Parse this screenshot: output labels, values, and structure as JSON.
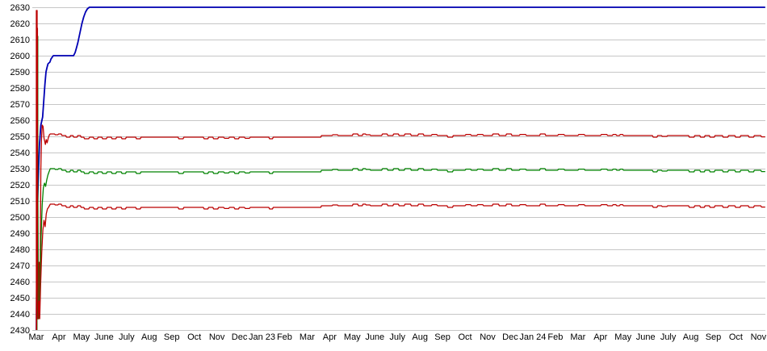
{
  "chart_data": {
    "type": "line",
    "title": "",
    "xlabel": "",
    "ylabel": "",
    "legend": "none",
    "grid": "horizontal",
    "grid_color": "#c6c6c6",
    "axis_line_color": "#c6c6c6",
    "text_color": "#000000",
    "ylim": [
      2430,
      2630
    ],
    "y_step": 10,
    "y_tick_labels": [
      "2630",
      "2620",
      "2610",
      "2600",
      "2590",
      "2580",
      "2570",
      "2560",
      "2550",
      "2540",
      "2530",
      "2520",
      "2510",
      "2500",
      "2490",
      "2480",
      "2470",
      "2460",
      "2450",
      "2440",
      "2430"
    ],
    "x_tick_labels": [
      "Mar",
      "Apr",
      "May",
      "June",
      "July",
      "Aug",
      "Sep",
      "Oct",
      "Nov",
      "Dec",
      "Jan 23",
      "Feb",
      "Mar",
      "Apr",
      "May",
      "June",
      "July",
      "Aug",
      "Sep",
      "Oct",
      "Nov",
      "Dec",
      "Jan 24",
      "Feb",
      "Mar",
      "Apr",
      "May",
      "June",
      "July",
      "Aug",
      "Sep",
      "Oct",
      "Nov"
    ],
    "x_range_months": [
      0,
      32.3
    ],
    "series": [
      {
        "name": "blue-peak-line",
        "color": "#0000b4",
        "width": 1.8,
        "points": [
          [
            0.0,
            2430
          ],
          [
            0.04,
            2500
          ],
          [
            0.08,
            2520
          ],
          [
            0.14,
            2545
          ],
          [
            0.2,
            2557
          ],
          [
            0.28,
            2562
          ],
          [
            0.33,
            2572
          ],
          [
            0.38,
            2582
          ],
          [
            0.43,
            2590
          ],
          [
            0.48,
            2593
          ],
          [
            0.52,
            2595
          ],
          [
            0.6,
            2596
          ],
          [
            0.65,
            2598
          ],
          [
            0.7,
            2599
          ],
          [
            0.75,
            2600
          ],
          [
            1.65,
            2600
          ],
          [
            1.72,
            2602
          ],
          [
            1.78,
            2605
          ],
          [
            1.84,
            2608
          ],
          [
            1.9,
            2612
          ],
          [
            1.96,
            2616
          ],
          [
            2.02,
            2620
          ],
          [
            2.1,
            2624
          ],
          [
            2.18,
            2627
          ],
          [
            2.26,
            2629
          ],
          [
            2.35,
            2630
          ],
          [
            32.3,
            2630
          ]
        ]
      },
      {
        "name": "red-upper-line",
        "color": "#bb0000",
        "width": 1.3,
        "base": 2550,
        "transient": [
          [
            0.0,
            2430
          ],
          [
            0.0,
            2628
          ],
          [
            0.035,
            2628
          ],
          [
            0.035,
            2505
          ],
          [
            0.06,
            2437
          ],
          [
            0.1,
            2437
          ],
          [
            0.13,
            2472
          ],
          [
            0.16,
            2448
          ],
          [
            0.2,
            2530
          ],
          [
            0.23,
            2548
          ],
          [
            0.26,
            2557
          ],
          [
            0.3,
            2556
          ],
          [
            0.34,
            2549
          ],
          [
            0.4,
            2545
          ],
          [
            0.44,
            2548
          ],
          [
            0.48,
            2546
          ],
          [
            0.53,
            2549
          ],
          [
            0.58,
            2551
          ]
        ],
        "uses_common_wiggle": true
      },
      {
        "name": "green-middle-line",
        "color": "#008200",
        "width": 1.3,
        "base": 2528.5,
        "transient": [
          [
            0.03,
            2430
          ],
          [
            0.03,
            2612
          ],
          [
            0.065,
            2612
          ],
          [
            0.065,
            2520
          ],
          [
            0.095,
            2437
          ],
          [
            0.13,
            2440
          ],
          [
            0.17,
            2462
          ],
          [
            0.21,
            2488
          ],
          [
            0.26,
            2508
          ],
          [
            0.31,
            2518
          ],
          [
            0.36,
            2521
          ],
          [
            0.41,
            2519
          ],
          [
            0.46,
            2523
          ],
          [
            0.51,
            2526
          ],
          [
            0.56,
            2528
          ]
        ],
        "uses_common_wiggle": true
      },
      {
        "name": "red-lower-line",
        "color": "#bb0000",
        "width": 1.3,
        "base": 2506.5,
        "transient": [
          [
            0.015,
            2430
          ],
          [
            0.015,
            2617
          ],
          [
            0.05,
            2617
          ],
          [
            0.05,
            2480
          ],
          [
            0.08,
            2437
          ],
          [
            0.12,
            2448
          ],
          [
            0.15,
            2437
          ],
          [
            0.19,
            2458
          ],
          [
            0.24,
            2478
          ],
          [
            0.29,
            2492
          ],
          [
            0.34,
            2498
          ],
          [
            0.39,
            2494
          ],
          [
            0.44,
            2502
          ],
          [
            0.49,
            2505
          ],
          [
            0.54,
            2506
          ]
        ],
        "uses_common_wiggle": true
      }
    ],
    "common_wiggle": [
      [
        0.62,
        1.5
      ],
      [
        0.8,
        1.5
      ],
      [
        0.84,
        1.0
      ],
      [
        0.95,
        1.0
      ],
      [
        0.99,
        1.5
      ],
      [
        1.1,
        1.5
      ],
      [
        1.14,
        0.5
      ],
      [
        1.3,
        0.5
      ],
      [
        1.34,
        -0.5
      ],
      [
        1.48,
        -0.5
      ],
      [
        1.52,
        0.5
      ],
      [
        1.62,
        0.5
      ],
      [
        1.66,
        -0.5
      ],
      [
        1.8,
        -0.5
      ],
      [
        1.84,
        0.5
      ],
      [
        1.95,
        0.5
      ],
      [
        1.99,
        -0.5
      ],
      [
        2.1,
        -0.5
      ],
      [
        2.14,
        -1.5
      ],
      [
        2.32,
        -1.5
      ],
      [
        2.36,
        -0.5
      ],
      [
        2.52,
        -0.5
      ],
      [
        2.56,
        -1.5
      ],
      [
        2.7,
        -1.5
      ],
      [
        2.74,
        -0.5
      ],
      [
        2.9,
        -0.5
      ],
      [
        2.94,
        -1.5
      ],
      [
        3.1,
        -1.5
      ],
      [
        3.14,
        -0.5
      ],
      [
        3.32,
        -0.5
      ],
      [
        3.36,
        -1.5
      ],
      [
        3.52,
        -1.5
      ],
      [
        3.56,
        -0.5
      ],
      [
        3.76,
        -0.5
      ],
      [
        3.8,
        -1.5
      ],
      [
        3.95,
        -1.5
      ],
      [
        3.99,
        -0.5
      ],
      [
        4.4,
        -0.5
      ],
      [
        4.44,
        -1.5
      ],
      [
        4.6,
        -1.5
      ],
      [
        4.64,
        -0.5
      ],
      [
        6.28,
        -0.5
      ],
      [
        6.32,
        -1.5
      ],
      [
        6.5,
        -1.5
      ],
      [
        6.54,
        -0.5
      ],
      [
        7.4,
        -0.5
      ],
      [
        7.44,
        -1.5
      ],
      [
        7.6,
        -1.5
      ],
      [
        7.64,
        -0.5
      ],
      [
        7.82,
        -0.5
      ],
      [
        7.86,
        -1.5
      ],
      [
        8.04,
        -1.5
      ],
      [
        8.08,
        -0.5
      ],
      [
        8.3,
        -0.5
      ],
      [
        8.34,
        -1.2
      ],
      [
        8.52,
        -1.2
      ],
      [
        8.56,
        -0.5
      ],
      [
        8.76,
        -0.5
      ],
      [
        8.8,
        -1.5
      ],
      [
        8.96,
        -1.5
      ],
      [
        9.0,
        -0.5
      ],
      [
        9.22,
        -0.5
      ],
      [
        9.26,
        -1.2
      ],
      [
        9.44,
        -1.2
      ],
      [
        9.48,
        -0.5
      ],
      [
        10.3,
        -0.5
      ],
      [
        10.34,
        -1.5
      ],
      [
        10.46,
        -1.5
      ],
      [
        10.5,
        -0.5
      ],
      [
        12.6,
        -0.5
      ],
      [
        12.64,
        0.5
      ],
      [
        13.1,
        0.5
      ],
      [
        13.14,
        1.0
      ],
      [
        13.34,
        1.0
      ],
      [
        13.38,
        0.5
      ],
      [
        14.0,
        0.5
      ],
      [
        14.04,
        1.5
      ],
      [
        14.24,
        1.5
      ],
      [
        14.28,
        0.5
      ],
      [
        14.44,
        0.5
      ],
      [
        14.48,
        1.5
      ],
      [
        14.58,
        1.5
      ],
      [
        14.62,
        1.0
      ],
      [
        14.78,
        1.0
      ],
      [
        14.82,
        0.5
      ],
      [
        15.3,
        0.5
      ],
      [
        15.34,
        1.5
      ],
      [
        15.54,
        1.5
      ],
      [
        15.58,
        0.5
      ],
      [
        15.8,
        0.5
      ],
      [
        15.84,
        1.5
      ],
      [
        16.04,
        1.5
      ],
      [
        16.08,
        0.5
      ],
      [
        16.3,
        0.5
      ],
      [
        16.34,
        1.5
      ],
      [
        16.58,
        1.5
      ],
      [
        16.62,
        0.5
      ],
      [
        16.9,
        0.5
      ],
      [
        16.94,
        1.5
      ],
      [
        17.14,
        1.5
      ],
      [
        17.18,
        0.5
      ],
      [
        17.5,
        0.5
      ],
      [
        17.54,
        1.2
      ],
      [
        17.74,
        1.2
      ],
      [
        17.78,
        0.5
      ],
      [
        18.2,
        0.5
      ],
      [
        18.24,
        -0.5
      ],
      [
        18.44,
        -0.5
      ],
      [
        18.48,
        0.5
      ],
      [
        19.0,
        0.5
      ],
      [
        19.04,
        1.2
      ],
      [
        19.24,
        1.2
      ],
      [
        19.28,
        0.5
      ],
      [
        19.52,
        0.5
      ],
      [
        19.56,
        1.2
      ],
      [
        19.78,
        1.2
      ],
      [
        19.82,
        0.5
      ],
      [
        20.2,
        0.5
      ],
      [
        20.24,
        1.5
      ],
      [
        20.48,
        1.5
      ],
      [
        20.52,
        0.5
      ],
      [
        20.8,
        0.5
      ],
      [
        20.84,
        1.5
      ],
      [
        21.04,
        1.5
      ],
      [
        21.08,
        0.5
      ],
      [
        21.4,
        0.5
      ],
      [
        21.44,
        1.2
      ],
      [
        21.68,
        1.2
      ],
      [
        21.72,
        0.5
      ],
      [
        22.3,
        0.5
      ],
      [
        22.34,
        1.5
      ],
      [
        22.54,
        1.5
      ],
      [
        22.58,
        0.5
      ],
      [
        23.1,
        0.5
      ],
      [
        23.14,
        1.2
      ],
      [
        23.38,
        1.2
      ],
      [
        23.42,
        0.5
      ],
      [
        24.0,
        0.5
      ],
      [
        24.04,
        1.2
      ],
      [
        24.28,
        1.2
      ],
      [
        24.32,
        0.5
      ],
      [
        25.0,
        0.5
      ],
      [
        25.04,
        1.2
      ],
      [
        25.28,
        1.2
      ],
      [
        25.32,
        0.5
      ],
      [
        25.52,
        0.5
      ],
      [
        25.56,
        1.2
      ],
      [
        25.68,
        1.2
      ],
      [
        25.72,
        0.5
      ],
      [
        25.84,
        0.5
      ],
      [
        25.88,
        1.2
      ],
      [
        25.98,
        1.2
      ],
      [
        26.02,
        0.5
      ],
      [
        27.3,
        0.5
      ],
      [
        27.34,
        -0.5
      ],
      [
        27.5,
        -0.5
      ],
      [
        27.54,
        0.5
      ],
      [
        27.7,
        0.5
      ],
      [
        27.74,
        0.0
      ],
      [
        27.94,
        0.0
      ],
      [
        27.98,
        0.5
      ],
      [
        28.9,
        0.5
      ],
      [
        28.94,
        -0.5
      ],
      [
        29.14,
        -0.5
      ],
      [
        29.18,
        0.5
      ],
      [
        29.4,
        0.5
      ],
      [
        29.44,
        -0.5
      ],
      [
        29.6,
        -0.5
      ],
      [
        29.64,
        0.5
      ],
      [
        29.82,
        0.5
      ],
      [
        29.86,
        -0.5
      ],
      [
        30.04,
        -0.5
      ],
      [
        30.08,
        0.5
      ],
      [
        30.4,
        0.5
      ],
      [
        30.44,
        -0.5
      ],
      [
        30.64,
        -0.5
      ],
      [
        30.68,
        0.5
      ],
      [
        30.95,
        0.5
      ],
      [
        30.99,
        -0.5
      ],
      [
        31.18,
        -0.5
      ],
      [
        31.22,
        0.5
      ],
      [
        31.55,
        0.5
      ],
      [
        31.59,
        -0.5
      ],
      [
        31.78,
        -0.5
      ],
      [
        31.82,
        0.5
      ],
      [
        32.1,
        0.5
      ],
      [
        32.14,
        -0.3
      ],
      [
        32.3,
        -0.3
      ]
    ]
  }
}
